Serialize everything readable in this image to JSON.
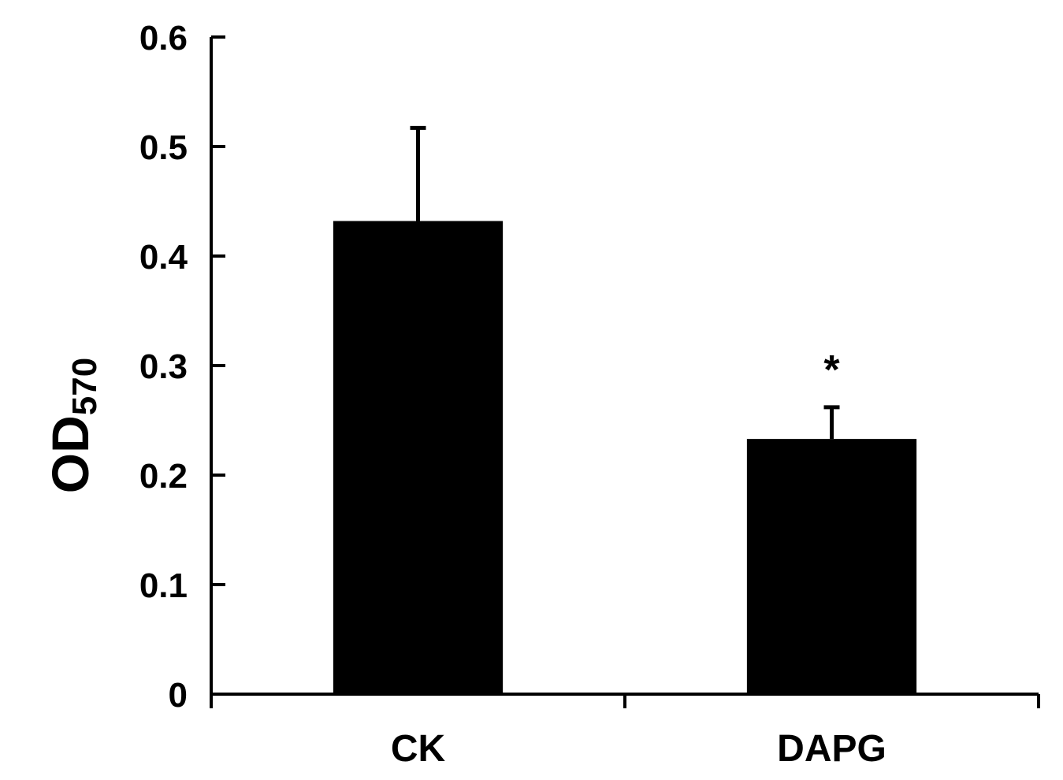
{
  "chart_data": {
    "type": "bar",
    "categories": [
      "CK",
      "DAPG"
    ],
    "values": [
      0.432,
      0.233
    ],
    "error": [
      0.085,
      0.029
    ],
    "annotations": [
      "",
      "*"
    ],
    "ylabel": {
      "main": "OD",
      "sub": "570"
    },
    "ylim": [
      0,
      0.6
    ],
    "yticks": [
      "0",
      "0.1",
      "0.2",
      "0.3",
      "0.4",
      "0.5",
      "0.6"
    ],
    "grid": false,
    "legend": "none",
    "colors": {
      "bar": "#000000",
      "axis": "#000000"
    }
  }
}
